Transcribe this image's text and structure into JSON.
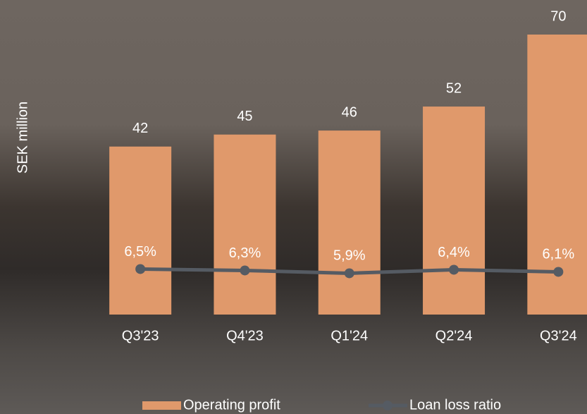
{
  "chart_data": {
    "type": "bar",
    "y_label": "SEK million",
    "categories": [
      "Q3'23",
      "Q4'23",
      "Q1'24",
      "Q2'24",
      "Q3'24"
    ],
    "ylim": [
      0,
      70
    ],
    "y2lim": [
      0,
      40
    ],
    "series": [
      {
        "name": "Operating profit",
        "type": "bar",
        "color": "#e0996b",
        "values": [
          42,
          45,
          46,
          52,
          70
        ]
      },
      {
        "name": "Loan loss ratio",
        "type": "line",
        "axis": "y2",
        "color": "#555b63",
        "values": [
          6.5,
          6.3,
          5.9,
          6.4,
          6.1
        ],
        "value_labels": [
          "6,5%",
          "6,3%",
          "5,9%",
          "6,4%",
          "6,1%"
        ]
      }
    ]
  }
}
